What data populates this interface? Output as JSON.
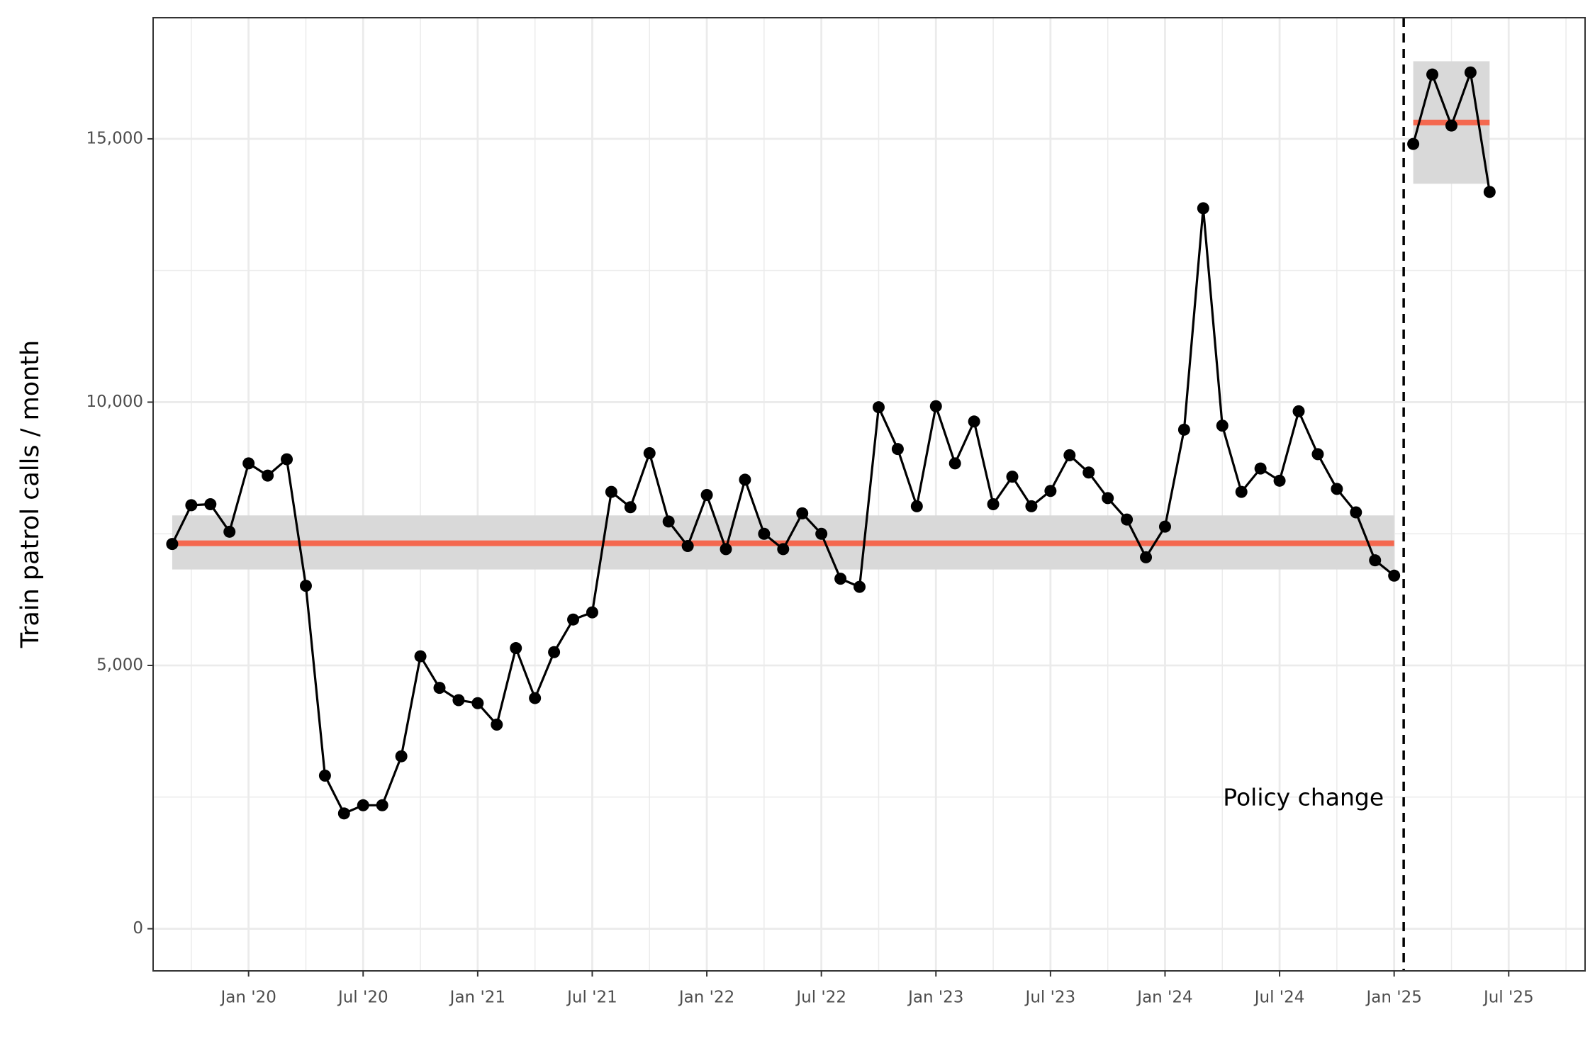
{
  "chart_data": {
    "type": "line",
    "y_label": "Train patrol calls / month",
    "annotation": "Policy change",
    "xlim": [
      "2019-08",
      "2025-11"
    ],
    "ylim": [
      -800,
      17300
    ],
    "xticks": [
      {
        "value": "2020-01",
        "label": "Jan '20"
      },
      {
        "value": "2020-07",
        "label": "Jul '20"
      },
      {
        "value": "2021-01",
        "label": "Jan '21"
      },
      {
        "value": "2021-07",
        "label": "Jul '21"
      },
      {
        "value": "2022-01",
        "label": "Jan '22"
      },
      {
        "value": "2022-07",
        "label": "Jul '22"
      },
      {
        "value": "2023-01",
        "label": "Jan '23"
      },
      {
        "value": "2023-07",
        "label": "Jul '23"
      },
      {
        "value": "2024-01",
        "label": "Jan '24"
      },
      {
        "value": "2024-07",
        "label": "Jul '24"
      },
      {
        "value": "2025-01",
        "label": "Jan '25"
      },
      {
        "value": "2025-07",
        "label": "Jul '25"
      }
    ],
    "yticks": [
      0,
      {
        "value": 5000,
        "label": "5,000"
      },
      {
        "value": 10000,
        "label": "10,000"
      },
      {
        "value": 15000,
        "label": "15,000"
      }
    ],
    "grid": true,
    "series": [
      {
        "color": "#000000",
        "x": [
          "2019-09",
          "2019-10",
          "2019-11",
          "2019-12",
          "2020-01",
          "2020-02",
          "2020-03",
          "2020-04",
          "2020-05",
          "2020-06",
          "2020-07",
          "2020-08",
          "2020-09",
          "2020-10",
          "2020-11",
          "2020-12",
          "2021-01",
          "2021-02",
          "2021-03",
          "2021-04",
          "2021-05",
          "2021-06",
          "2021-07",
          "2021-08",
          "2021-09",
          "2021-10",
          "2021-11",
          "2021-12",
          "2022-01",
          "2022-02",
          "2022-03",
          "2022-04",
          "2022-05",
          "2022-06",
          "2022-07",
          "2022-08",
          "2022-09",
          "2022-10",
          "2022-11",
          "2022-12",
          "2023-01",
          "2023-02",
          "2023-03",
          "2023-04",
          "2023-05",
          "2023-06",
          "2023-07",
          "2023-08",
          "2023-09",
          "2023-10",
          "2023-11",
          "2023-12",
          "2024-01",
          "2024-02",
          "2024-03",
          "2024-04",
          "2024-05",
          "2024-06",
          "2024-07",
          "2024-08",
          "2024-09",
          "2024-10",
          "2024-11",
          "2024-12",
          "2025-01"
        ],
        "values": [
          7306,
          8043,
          8062,
          7539,
          8837,
          8605,
          8915,
          6512,
          2907,
          2190,
          2345,
          2345,
          3275,
          5174,
          4574,
          4341,
          4283,
          3876,
          5329,
          4380,
          5252,
          5872,
          6008,
          8295,
          8004,
          9031,
          7733,
          7267,
          8236,
          7209,
          8527,
          7500,
          7209,
          7888,
          7500,
          6647,
          6492,
          9903,
          9109,
          8023,
          9922,
          8837,
          9632,
          8062,
          8585,
          8023,
          8314,
          8992,
          8663,
          8178,
          7771,
          7054,
          7636,
          9477,
          13682,
          9554,
          8295,
          8740,
          8508,
          9826,
          9012,
          8353,
          7907,
          6996,
          6705
        ]
      },
      {
        "color": "#000000",
        "x": [
          "2025-02",
          "2025-03",
          "2025-04",
          "2025-05",
          "2025-06"
        ],
        "values": [
          14903,
          16221,
          15252,
          16260,
          13992
        ]
      }
    ],
    "periods": [
      {
        "x": [
          "2019-09",
          "2025-01"
        ],
        "mean": 7320,
        "band": [
          6822,
          7849
        ]
      },
      {
        "x": [
          "2025-02",
          "2025-06"
        ],
        "mean": 15310,
        "band": [
          14147,
          16473
        ]
      }
    ],
    "mean_color": "#f4684f",
    "band_color": "#d9d9d9"
  }
}
